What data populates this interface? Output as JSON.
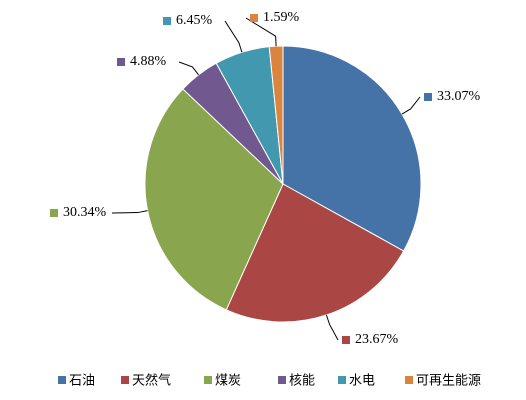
{
  "chart_data": {
    "type": "pie",
    "categories": [
      "石油",
      "天然气",
      "煤炭",
      "核能",
      "水电",
      "可再生能源"
    ],
    "values": [
      33.07,
      23.67,
      30.34,
      4.88,
      6.45,
      1.59
    ],
    "value_labels": [
      "33.07%",
      "23.67%",
      "30.34%",
      "4.88%",
      "6.45%",
      "1.59%"
    ],
    "colors": [
      "#4572a7",
      "#aa4643",
      "#89a54e",
      "#71588f",
      "#4198af",
      "#db843d"
    ],
    "legend": "bottom"
  }
}
